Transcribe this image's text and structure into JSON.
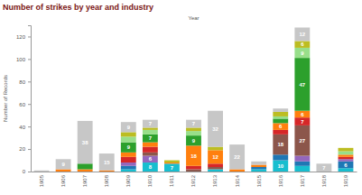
{
  "chart_data": {
    "type": "bar",
    "title": "Number of strikes by year and industry",
    "subtitle": "Year",
    "y_label": "Number of Records",
    "categories": [
      "1905",
      "1906",
      "1907",
      "1908",
      "1909",
      "1910",
      "1911",
      "1912",
      "1913",
      "1914",
      "1915",
      "1916",
      "1917",
      "1918",
      "1919"
    ],
    "stacked": true,
    "data_labels": true,
    "ylim": [
      0,
      130
    ],
    "yticks": [
      0,
      20,
      40,
      60,
      80,
      100,
      120
    ],
    "series": [
      {
        "color": "#17becf",
        "values": [
          0,
          0,
          0,
          0,
          2,
          8,
          7,
          0,
          2,
          0,
          2,
          10,
          5,
          0,
          3
        ]
      },
      {
        "color": "#1f77b4",
        "values": [
          0,
          0,
          0,
          0,
          3,
          0,
          0,
          0,
          0,
          0,
          2,
          5,
          4,
          0,
          6
        ]
      },
      {
        "color": "#9467bd",
        "values": [
          0,
          0,
          0,
          0,
          3,
          6,
          0,
          0,
          0,
          0,
          0,
          0,
          5,
          0,
          2
        ]
      },
      {
        "color": "#8c564b",
        "values": [
          0,
          0,
          0,
          0,
          0,
          3,
          0,
          2,
          2,
          0,
          0,
          18,
          27,
          0,
          0
        ]
      },
      {
        "color": "#d62728",
        "values": [
          0,
          0,
          0,
          0,
          5,
          5,
          0,
          3,
          3,
          0,
          0,
          4,
          7,
          0,
          2
        ]
      },
      {
        "color": "#ff7f0e",
        "values": [
          0,
          2,
          2,
          1,
          4,
          4,
          1,
          18,
          12,
          2,
          2,
          6,
          6,
          0,
          2
        ]
      },
      {
        "color": "#2ca02c",
        "values": [
          0,
          0,
          5,
          0,
          9,
          7,
          0,
          9,
          0,
          0,
          0,
          4,
          47,
          0,
          0
        ]
      },
      {
        "color": "#98df8a",
        "values": [
          0,
          0,
          0,
          0,
          5,
          4,
          0,
          4,
          0,
          0,
          0,
          2,
          9,
          0,
          3
        ]
      },
      {
        "color": "#bcbd22",
        "values": [
          0,
          0,
          0,
          0,
          4,
          2,
          2,
          3,
          3,
          0,
          0,
          4,
          6,
          0,
          3
        ]
      },
      {
        "color": "#c7c7c7",
        "values": [
          1,
          9,
          38,
          15,
          9,
          7,
          0,
          7,
          32,
          22,
          3,
          3,
          12,
          7,
          0
        ]
      }
    ]
  }
}
